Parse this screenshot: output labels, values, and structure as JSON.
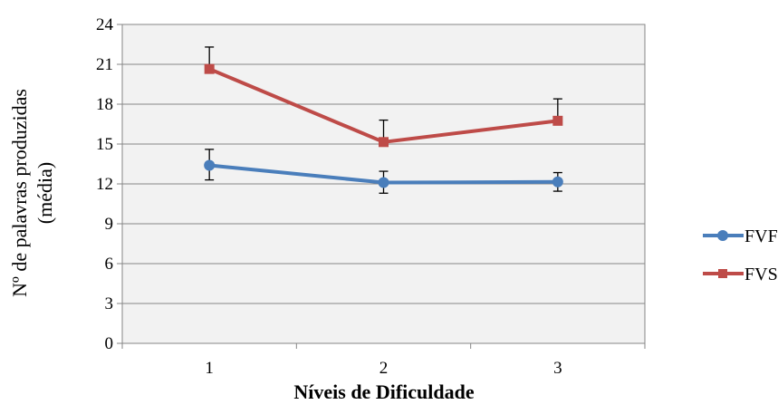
{
  "chart_data": {
    "type": "line",
    "title": "",
    "xlabel": "Níveis de Dificuldade",
    "ylabel_lines": [
      "Nº de palavras produzidas",
      "(média)"
    ],
    "categories": [
      "1",
      "2",
      "3"
    ],
    "ylim": [
      0,
      24
    ],
    "yticks": [
      0,
      3,
      6,
      9,
      12,
      15,
      18,
      21,
      24
    ],
    "grid": true,
    "plot_background": "#f2f2f2",
    "legend_position": "right",
    "series": [
      {
        "name": "FVF",
        "color": "#4a7ebb",
        "marker": "circle",
        "values": [
          13.4,
          12.1,
          12.15
        ],
        "error_high": [
          14.6,
          12.95,
          12.85
        ],
        "error_low": [
          12.3,
          11.3,
          11.45
        ]
      },
      {
        "name": "FVS",
        "color": "#be4b48",
        "marker": "square",
        "values": [
          20.65,
          15.15,
          16.75
        ],
        "error_high": [
          22.3,
          16.8,
          18.4
        ]
      }
    ]
  }
}
